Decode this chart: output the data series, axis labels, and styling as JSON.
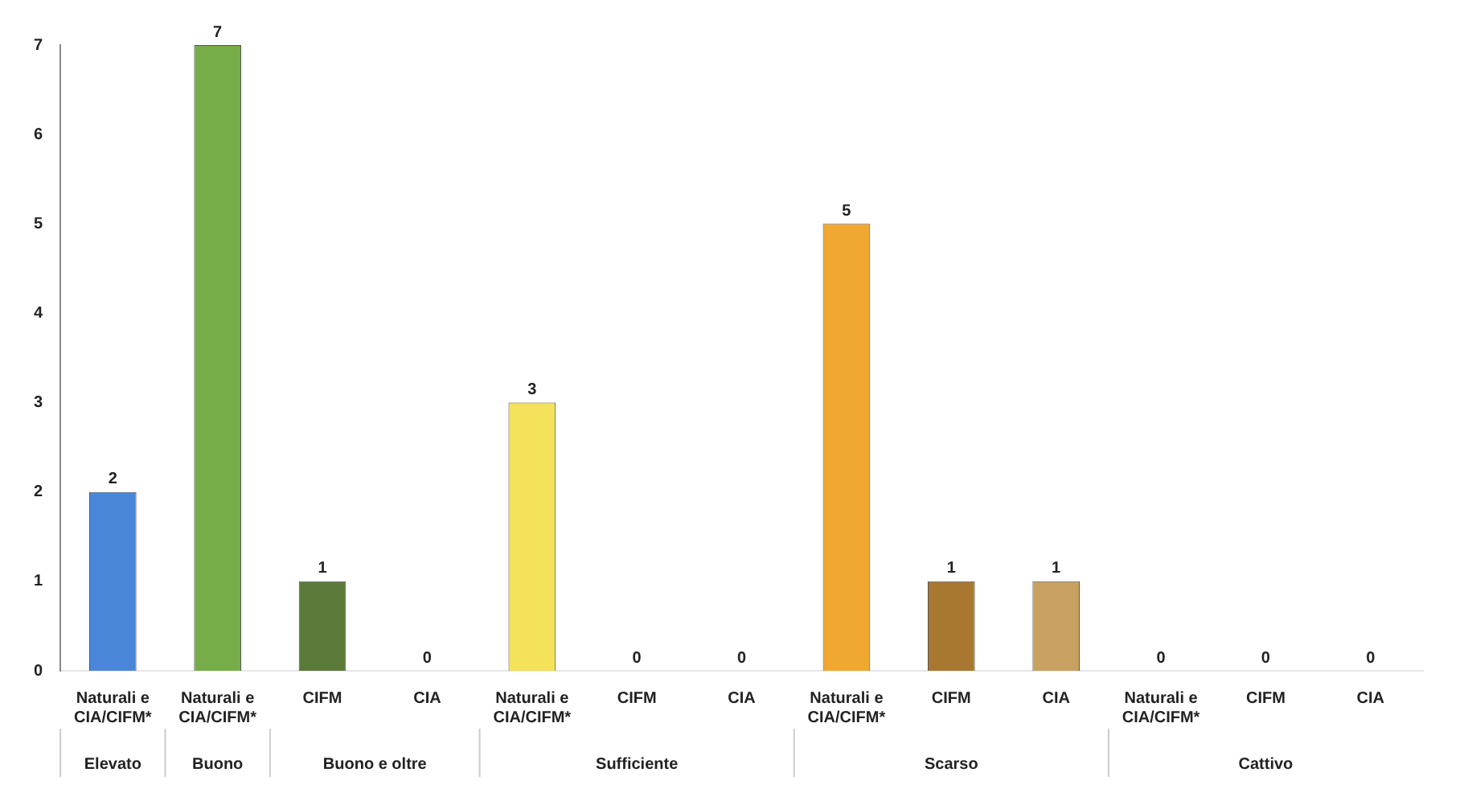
{
  "chart_data": {
    "type": "bar",
    "categories": [
      "Naturali e CIA/CIFM*",
      "Naturali e CIA/CIFM*",
      "CIFM",
      "CIA",
      "Naturali e CIA/CIFM*",
      "CIFM",
      "CIA",
      "Naturali e CIA/CIFM*",
      "CIFM",
      "CIA",
      "Naturali e CIA/CIFM*",
      "CIFM",
      "CIA"
    ],
    "values": [
      2,
      7,
      1,
      0,
      3,
      0,
      0,
      5,
      1,
      1,
      0,
      0,
      0
    ],
    "colors": [
      "#4a86d8",
      "#76ad48",
      "#5b7a3a",
      "#6e8a4a",
      "#f3e25a",
      "#c9b84a",
      "#c9b84a",
      "#f0a830",
      "#a87830",
      "#c8a060",
      "#c0302a",
      "#c0302a",
      "#c0302a"
    ],
    "ylim": [
      0,
      7
    ],
    "yticks": [
      0,
      1,
      2,
      3,
      4,
      5,
      6,
      7
    ],
    "data_labels": true,
    "annotations": [
      "Elevato",
      "Buono",
      "Buono e oltre",
      "Sufficiente",
      "Scarso",
      "Cattivo"
    ]
  }
}
